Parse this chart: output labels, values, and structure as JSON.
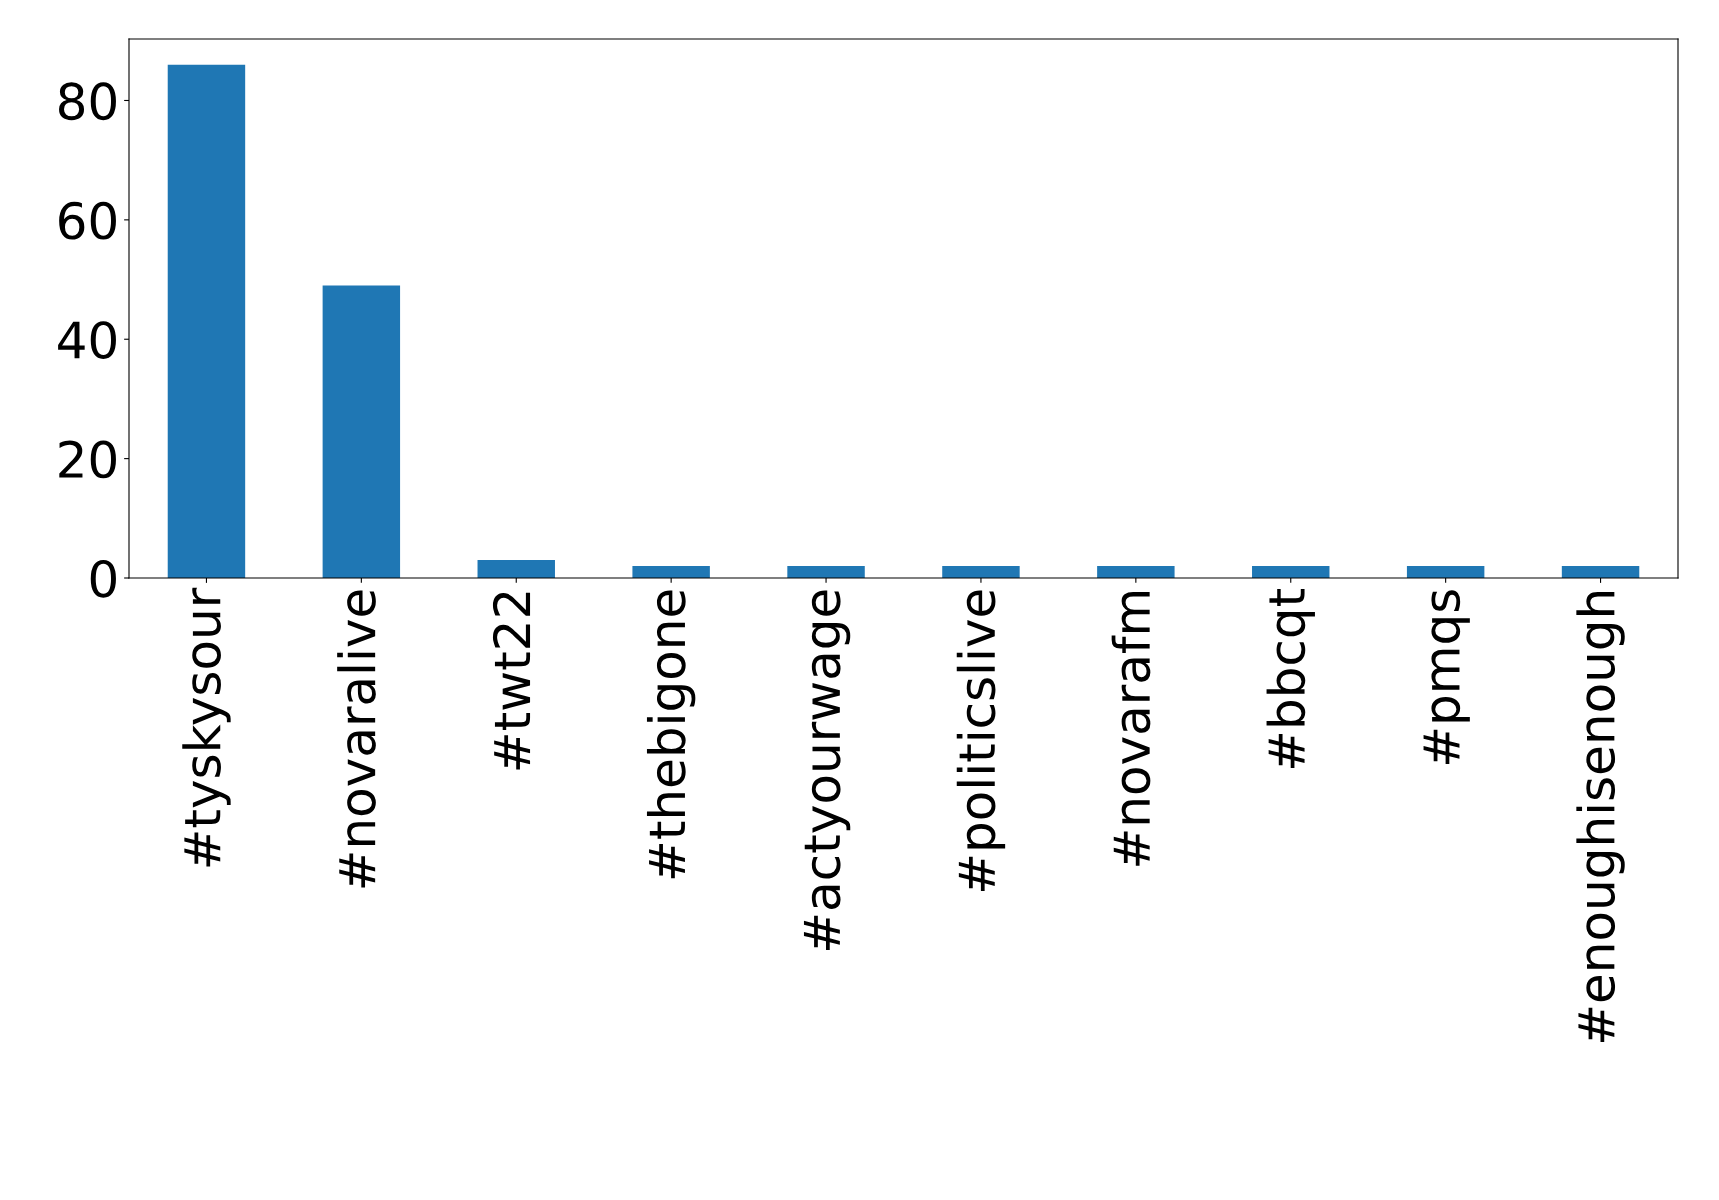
{
  "chart_data": {
    "type": "bar",
    "categories": [
      "#tyskysour",
      "#novaralive",
      "#twt22",
      "#thebigone",
      "#actyourwage",
      "#politicslive",
      "#novarafm",
      "#bbcqt",
      "#pmqs",
      "#enoughisenough"
    ],
    "values": [
      86,
      49,
      3,
      2,
      2,
      2,
      2,
      2,
      2,
      2
    ],
    "color": "#1f77b4",
    "ylim": [
      0,
      90.3
    ],
    "yticks": [
      0,
      20,
      40,
      60,
      80
    ],
    "grid": false,
    "legend": false
  }
}
